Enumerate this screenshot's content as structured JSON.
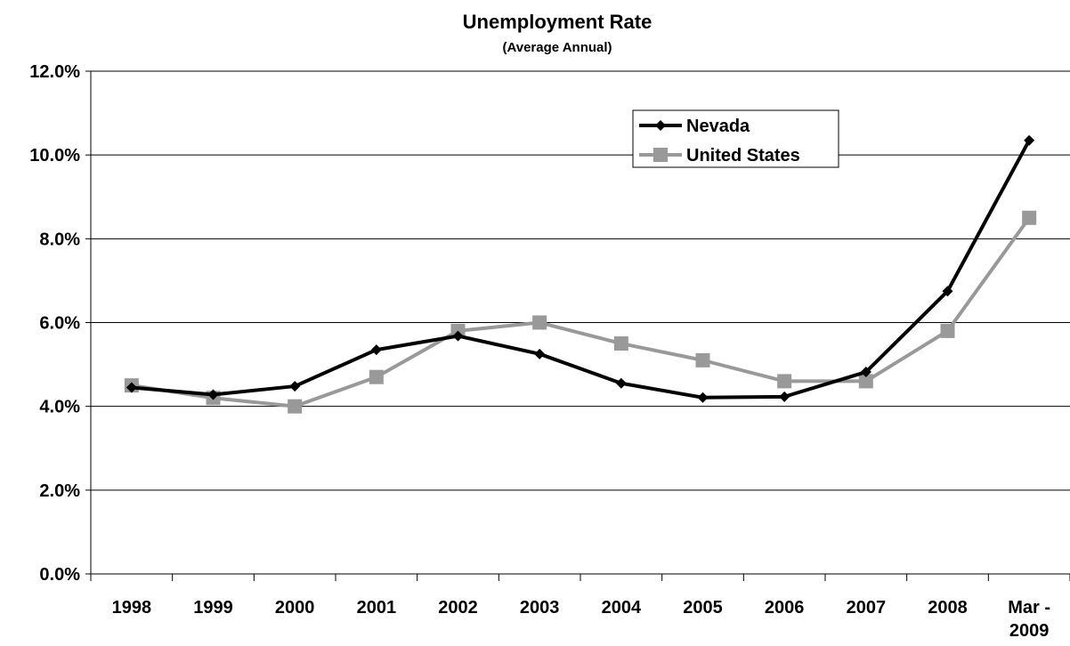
{
  "chart_data": {
    "type": "line",
    "title": "Unemployment Rate",
    "subtitle": "(Average Annual)",
    "categories": [
      "1998",
      "1999",
      "2000",
      "2001",
      "2002",
      "2003",
      "2004",
      "2005",
      "2006",
      "2007",
      "2008",
      "Mar -\n2009"
    ],
    "series": [
      {
        "name": "Nevada",
        "color": "#000000",
        "marker": "diamond",
        "values": [
          4.45,
          4.28,
          4.48,
          5.35,
          5.68,
          5.25,
          4.55,
          4.21,
          4.23,
          4.82,
          6.75,
          10.35
        ]
      },
      {
        "name": "United States",
        "color": "#999999",
        "marker": "square",
        "values": [
          4.5,
          4.2,
          4.0,
          4.7,
          5.8,
          6.0,
          5.5,
          5.1,
          4.6,
          4.6,
          5.8,
          8.5
        ]
      }
    ],
    "ylim": [
      0,
      12
    ],
    "yticks": [
      "0.0%",
      "2.0%",
      "4.0%",
      "6.0%",
      "8.0%",
      "10.0%",
      "12.0%"
    ],
    "ytick_values": [
      0,
      2,
      4,
      6,
      8,
      10,
      12
    ],
    "grid": true,
    "legend_position": "top-right"
  }
}
